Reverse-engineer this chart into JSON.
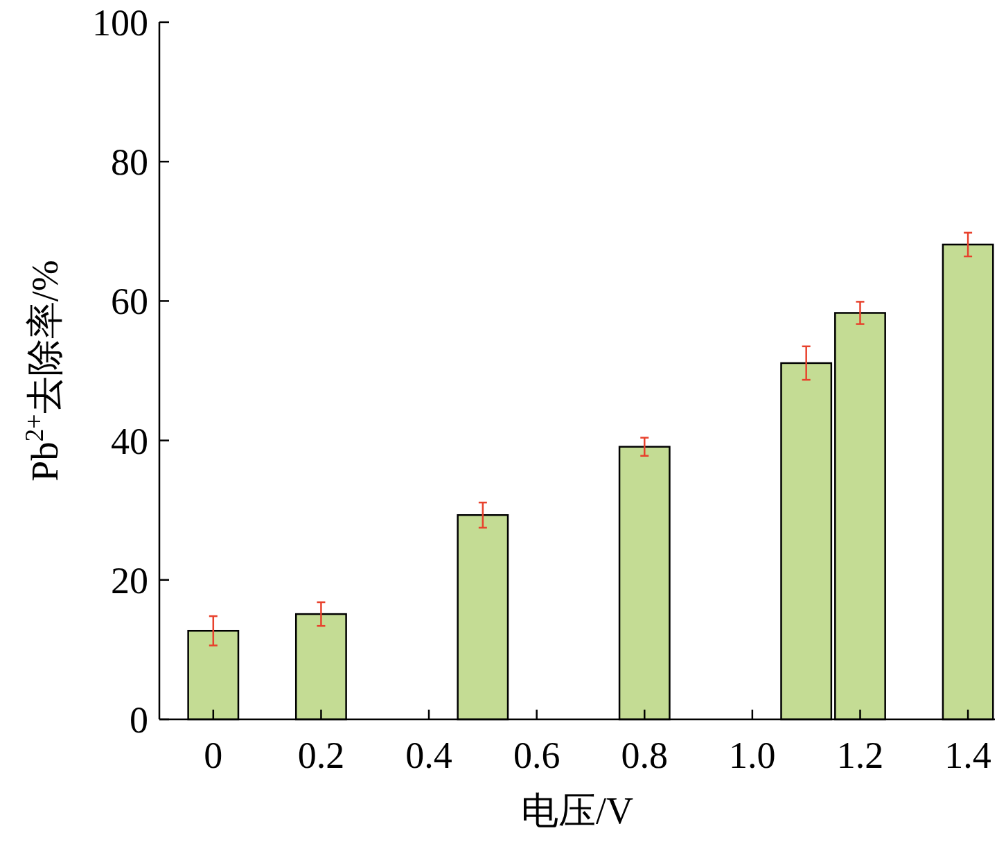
{
  "chart_data": {
    "type": "bar",
    "xlabel": "电压/V",
    "ylabel": "Pb$^{2+}$去除率/%",
    "x": [
      0,
      0.2,
      0.5,
      0.8,
      1.1,
      1.2,
      1.4
    ],
    "values": [
      12.7,
      15.1,
      29.3,
      39.1,
      51.1,
      58.3,
      68.1
    ],
    "errors": [
      2.1,
      1.7,
      1.8,
      1.3,
      2.4,
      1.6,
      1.7
    ],
    "color": "#c4dc94",
    "xlim": [
      -0.1,
      1.45
    ],
    "xticks": [
      0,
      0.2,
      0.4,
      0.6,
      0.8,
      {
        "value": 1,
        "label": "1.0"
      },
      1.2,
      1.4
    ],
    "ylim": [
      0,
      100
    ],
    "yticks": [
      0,
      20,
      40,
      60,
      80,
      100
    ],
    "grid": false
  }
}
